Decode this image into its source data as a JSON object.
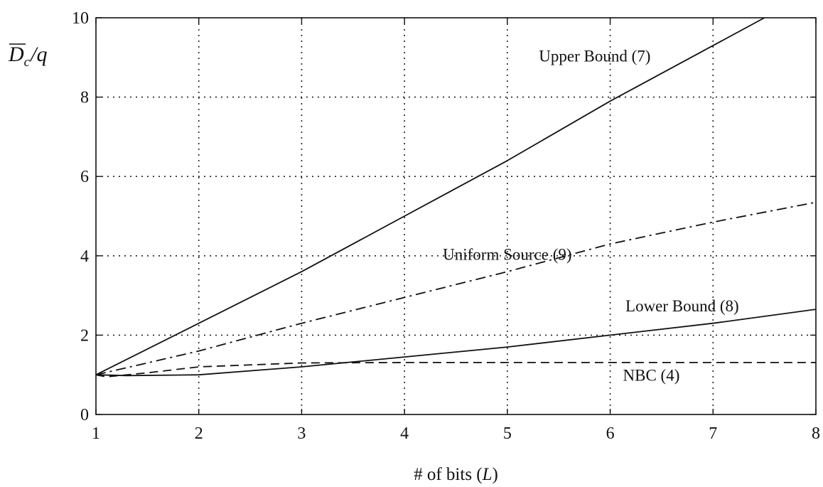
{
  "chart_data": {
    "type": "line",
    "xlabel": "# of bits (L)",
    "xlabel_parts": [
      "# of bits (",
      "L",
      ")"
    ],
    "ylabel_parts": [
      "D",
      "c",
      "/q"
    ],
    "xlim": [
      1,
      8
    ],
    "ylim": [
      0,
      10
    ],
    "xticks": [
      1,
      2,
      3,
      4,
      5,
      6,
      7,
      8
    ],
    "yticks": [
      0,
      2,
      4,
      6,
      8,
      10
    ],
    "grid": true,
    "series": [
      {
        "name": "Upper Bound (7)",
        "style": "solid",
        "x": [
          1,
          2,
          3,
          4,
          5,
          6,
          7,
          7.5
        ],
        "y": [
          1,
          2.3,
          3.6,
          5.0,
          6.4,
          7.9,
          9.3,
          10
        ]
      },
      {
        "name": "Uniform Source (9)",
        "style": "dashdot",
        "x": [
          1,
          2,
          3,
          4,
          5,
          6,
          7,
          8
        ],
        "y": [
          1,
          1.6,
          2.3,
          2.95,
          3.6,
          4.3,
          4.85,
          5.35
        ]
      },
      {
        "name": "Lower Bound (8)",
        "style": "solid",
        "x": [
          1,
          1.3,
          2,
          3,
          4,
          5,
          6,
          7,
          8
        ],
        "y": [
          1,
          0.98,
          1.0,
          1.2,
          1.45,
          1.7,
          2.0,
          2.3,
          2.65
        ]
      },
      {
        "name": "NBC (4)",
        "style": "dashed",
        "x": [
          1,
          1.1,
          1.5,
          2,
          3,
          4,
          8
        ],
        "y": [
          1,
          0.95,
          1.05,
          1.2,
          1.3,
          1.31,
          1.31
        ]
      }
    ],
    "annotations": [
      {
        "text": "Upper Bound (7)",
        "x": 5.85,
        "y": 8.9
      },
      {
        "text": "Uniform Source (9)",
        "x": 5.0,
        "y": 3.9
      },
      {
        "text": "Lower Bound (8)",
        "x": 6.7,
        "y": 2.6
      },
      {
        "text": "NBC (4)",
        "x": 6.4,
        "y": 0.85
      }
    ]
  }
}
